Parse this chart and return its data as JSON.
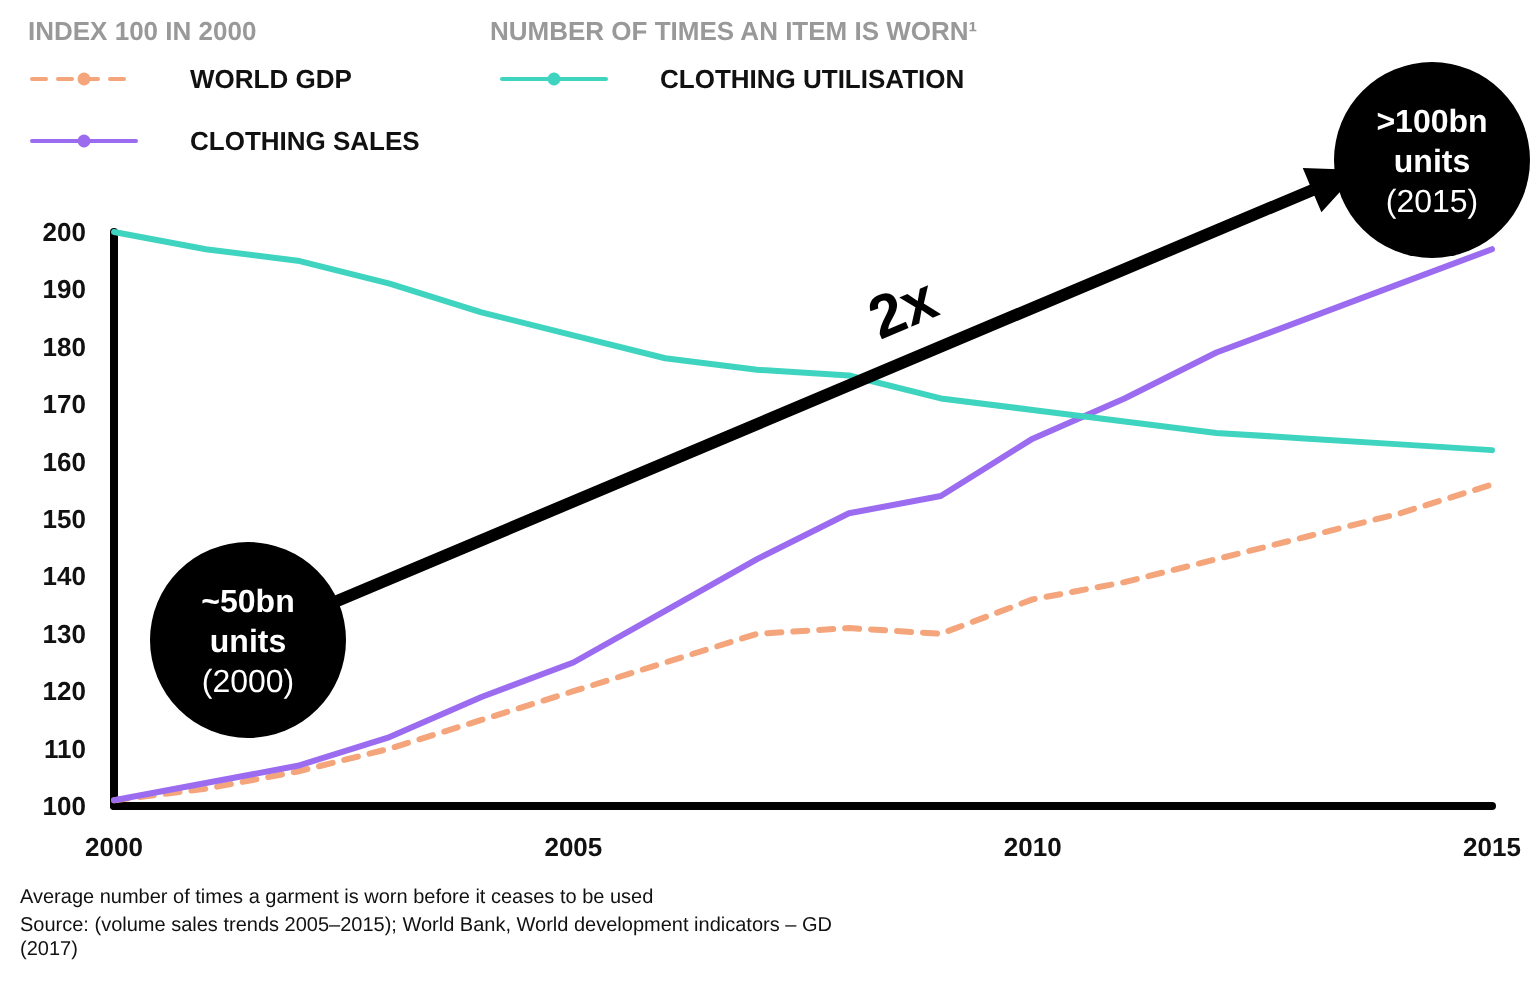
{
  "chart_data": {
    "type": "line",
    "legend_title": "INDEX 100 IN 2000",
    "legend": "top left",
    "grid": false,
    "marker": "none",
    "x": [
      2000,
      2001,
      2002,
      2003,
      2004,
      2005,
      2006,
      2007,
      2008,
      2009,
      2010,
      2011,
      2012,
      2013,
      2014,
      2015
    ],
    "series": [
      {
        "name": "WORLD GDP",
        "color": "#f4a57b",
        "line_style": "dashed",
        "values": [
          101,
          103,
          106,
          110,
          115,
          120,
          125,
          130,
          131,
          130,
          136,
          139,
          143,
          147,
          151,
          156
        ]
      },
      {
        "name": "CLOTHING SALES",
        "color": "#9b6cf0",
        "line_style": "solid",
        "values": [
          101,
          104,
          107,
          112,
          119,
          125,
          134,
          143,
          151,
          154,
          164,
          171,
          179,
          185,
          191,
          197
        ]
      },
      {
        "name": "CLOTHING UTILISATION",
        "color": "#3fd4bf",
        "line_style": "solid",
        "values": [
          200,
          197,
          195,
          191,
          186,
          182,
          178,
          176,
          175,
          171,
          169,
          167,
          165,
          164,
          163,
          162
        ]
      }
    ],
    "xlim": [
      2000,
      2015
    ],
    "xticks": [
      2000,
      2005,
      2010,
      2015
    ],
    "ylim": [
      100,
      200
    ],
    "yticks": [
      100,
      110,
      120,
      130,
      140,
      150,
      160,
      170,
      180,
      190,
      200
    ],
    "annotations": [
      "NUMBER OF TIMES AN ITEM IS WORN¹",
      "2x",
      "~50bn\nunits\n(2000)",
      ">100bn\nunits\n(2015)",
      "Average number of times a garment is worn before it ceases to be used",
      "Source: (volume sales trends 2005–2015); World Bank, World development indicators – GD (2017)"
    ]
  }
}
